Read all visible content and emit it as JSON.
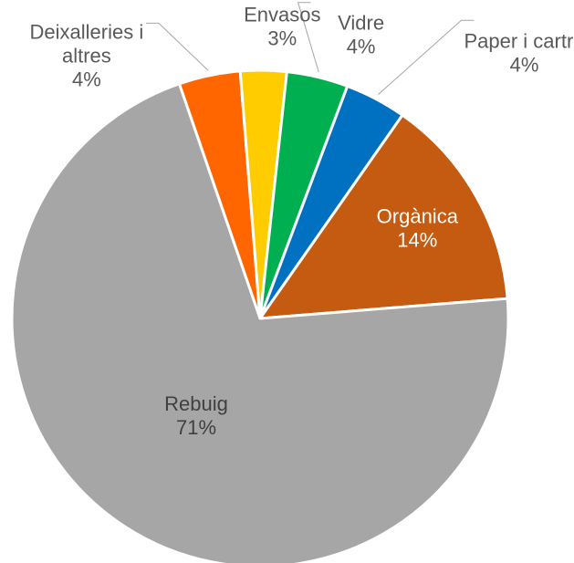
{
  "chart_data": {
    "type": "pie",
    "title": "",
    "slices": [
      {
        "name": "Deixalleries i altres",
        "value": 4,
        "label_lines": [
          "Deixalleries i",
          "altres"
        ],
        "value_label": "4%",
        "color": "#ff6600"
      },
      {
        "name": "Envasos",
        "value": 3,
        "label_lines": [
          "Envasos"
        ],
        "value_label": "3%",
        "color": "#ffcc00"
      },
      {
        "name": "Vidre",
        "value": 4,
        "label_lines": [
          "Vidre"
        ],
        "value_label": "4%",
        "color": "#00b050"
      },
      {
        "name": "Paper i cartró",
        "value": 4,
        "label_lines": [
          "Paper i cartró"
        ],
        "value_label": "4%",
        "color": "#0070c0"
      },
      {
        "name": "Orgànica",
        "value": 14,
        "label_lines": [
          "Orgànica"
        ],
        "value_label": "14%",
        "color": "#c55a11"
      },
      {
        "name": "Rebuig",
        "value": 71,
        "label_lines": [
          "Rebuig"
        ],
        "value_label": "71%",
        "color": "#a6a6a6"
      }
    ],
    "legend": "none",
    "data_labels": "category and percentage"
  }
}
